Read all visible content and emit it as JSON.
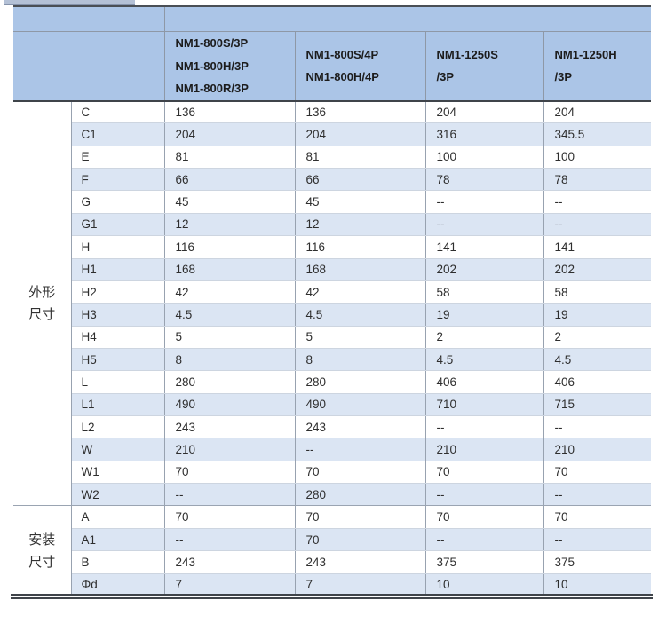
{
  "table": {
    "top_strip": {
      "left": "",
      "right": ""
    },
    "header": {
      "corner": "",
      "columns": [
        {
          "lines": [
            "NM1-800S/3P",
            "NM1-800H/3P",
            "NM1-800R/3P"
          ]
        },
        {
          "lines": [
            "NM1-800S/4P",
            "NM1-800H/4P"
          ]
        },
        {
          "lines": [
            "NM1-1250S",
            "/3P"
          ]
        },
        {
          "lines": [
            "NM1-1250H",
            "/3P"
          ]
        }
      ]
    },
    "groups": [
      {
        "label_lines": [
          "外形",
          "尺寸"
        ],
        "rows": [
          {
            "dim": "C",
            "values": [
              "136",
              "136",
              "204",
              "204"
            ]
          },
          {
            "dim": "C1",
            "values": [
              "204",
              "204",
              "316",
              "345.5"
            ]
          },
          {
            "dim": "E",
            "values": [
              "81",
              "81",
              "100",
              "100"
            ]
          },
          {
            "dim": "F",
            "values": [
              "66",
              "66",
              "78",
              "78"
            ]
          },
          {
            "dim": "G",
            "values": [
              "45",
              "45",
              "--",
              "--"
            ]
          },
          {
            "dim": "G1",
            "values": [
              "12",
              "12",
              "--",
              "--"
            ]
          },
          {
            "dim": "H",
            "values": [
              "116",
              "116",
              "141",
              "141"
            ]
          },
          {
            "dim": "H1",
            "values": [
              "168",
              "168",
              "202",
              "202"
            ]
          },
          {
            "dim": "H2",
            "values": [
              "42",
              "42",
              "58",
              "58"
            ]
          },
          {
            "dim": "H3",
            "values": [
              "4.5",
              "4.5",
              "19",
              "19"
            ]
          },
          {
            "dim": "H4",
            "values": [
              "5",
              "5",
              "2",
              "2"
            ]
          },
          {
            "dim": "H5",
            "values": [
              "8",
              "8",
              "4.5",
              "4.5"
            ]
          },
          {
            "dim": "L",
            "values": [
              "280",
              "280",
              "406",
              "406"
            ]
          },
          {
            "dim": "L1",
            "values": [
              "490",
              "490",
              "710",
              "715"
            ]
          },
          {
            "dim": "L2",
            "values": [
              "243",
              "243",
              "--",
              "--"
            ]
          },
          {
            "dim": "W",
            "values": [
              "210",
              "--",
              "210",
              "210"
            ]
          },
          {
            "dim": "W1",
            "values": [
              "70",
              "70",
              "70",
              "70"
            ]
          },
          {
            "dim": "W2",
            "values": [
              "--",
              "280",
              "--",
              "--"
            ]
          }
        ]
      },
      {
        "label_lines": [
          "安装",
          "尺寸"
        ],
        "rows": [
          {
            "dim": "A",
            "values": [
              "70",
              "70",
              "70",
              "70"
            ]
          },
          {
            "dim": "A1",
            "values": [
              "--",
              "70",
              "--",
              "--"
            ]
          },
          {
            "dim": "B",
            "values": [
              "243",
              "243",
              "375",
              "375"
            ]
          },
          {
            "dim": "Φd",
            "values": [
              "7",
              "7",
              "10",
              "10"
            ]
          }
        ]
      }
    ],
    "colors": {
      "header_blue": "#abc5e7",
      "row_alt_blue": "#dbe5f3",
      "row_white": "#ffffff",
      "dark_rule": "#3f444a",
      "grid_line": "#98a2b0",
      "row_line": "#cdd5e0",
      "text": "#2e2e2e"
    }
  }
}
